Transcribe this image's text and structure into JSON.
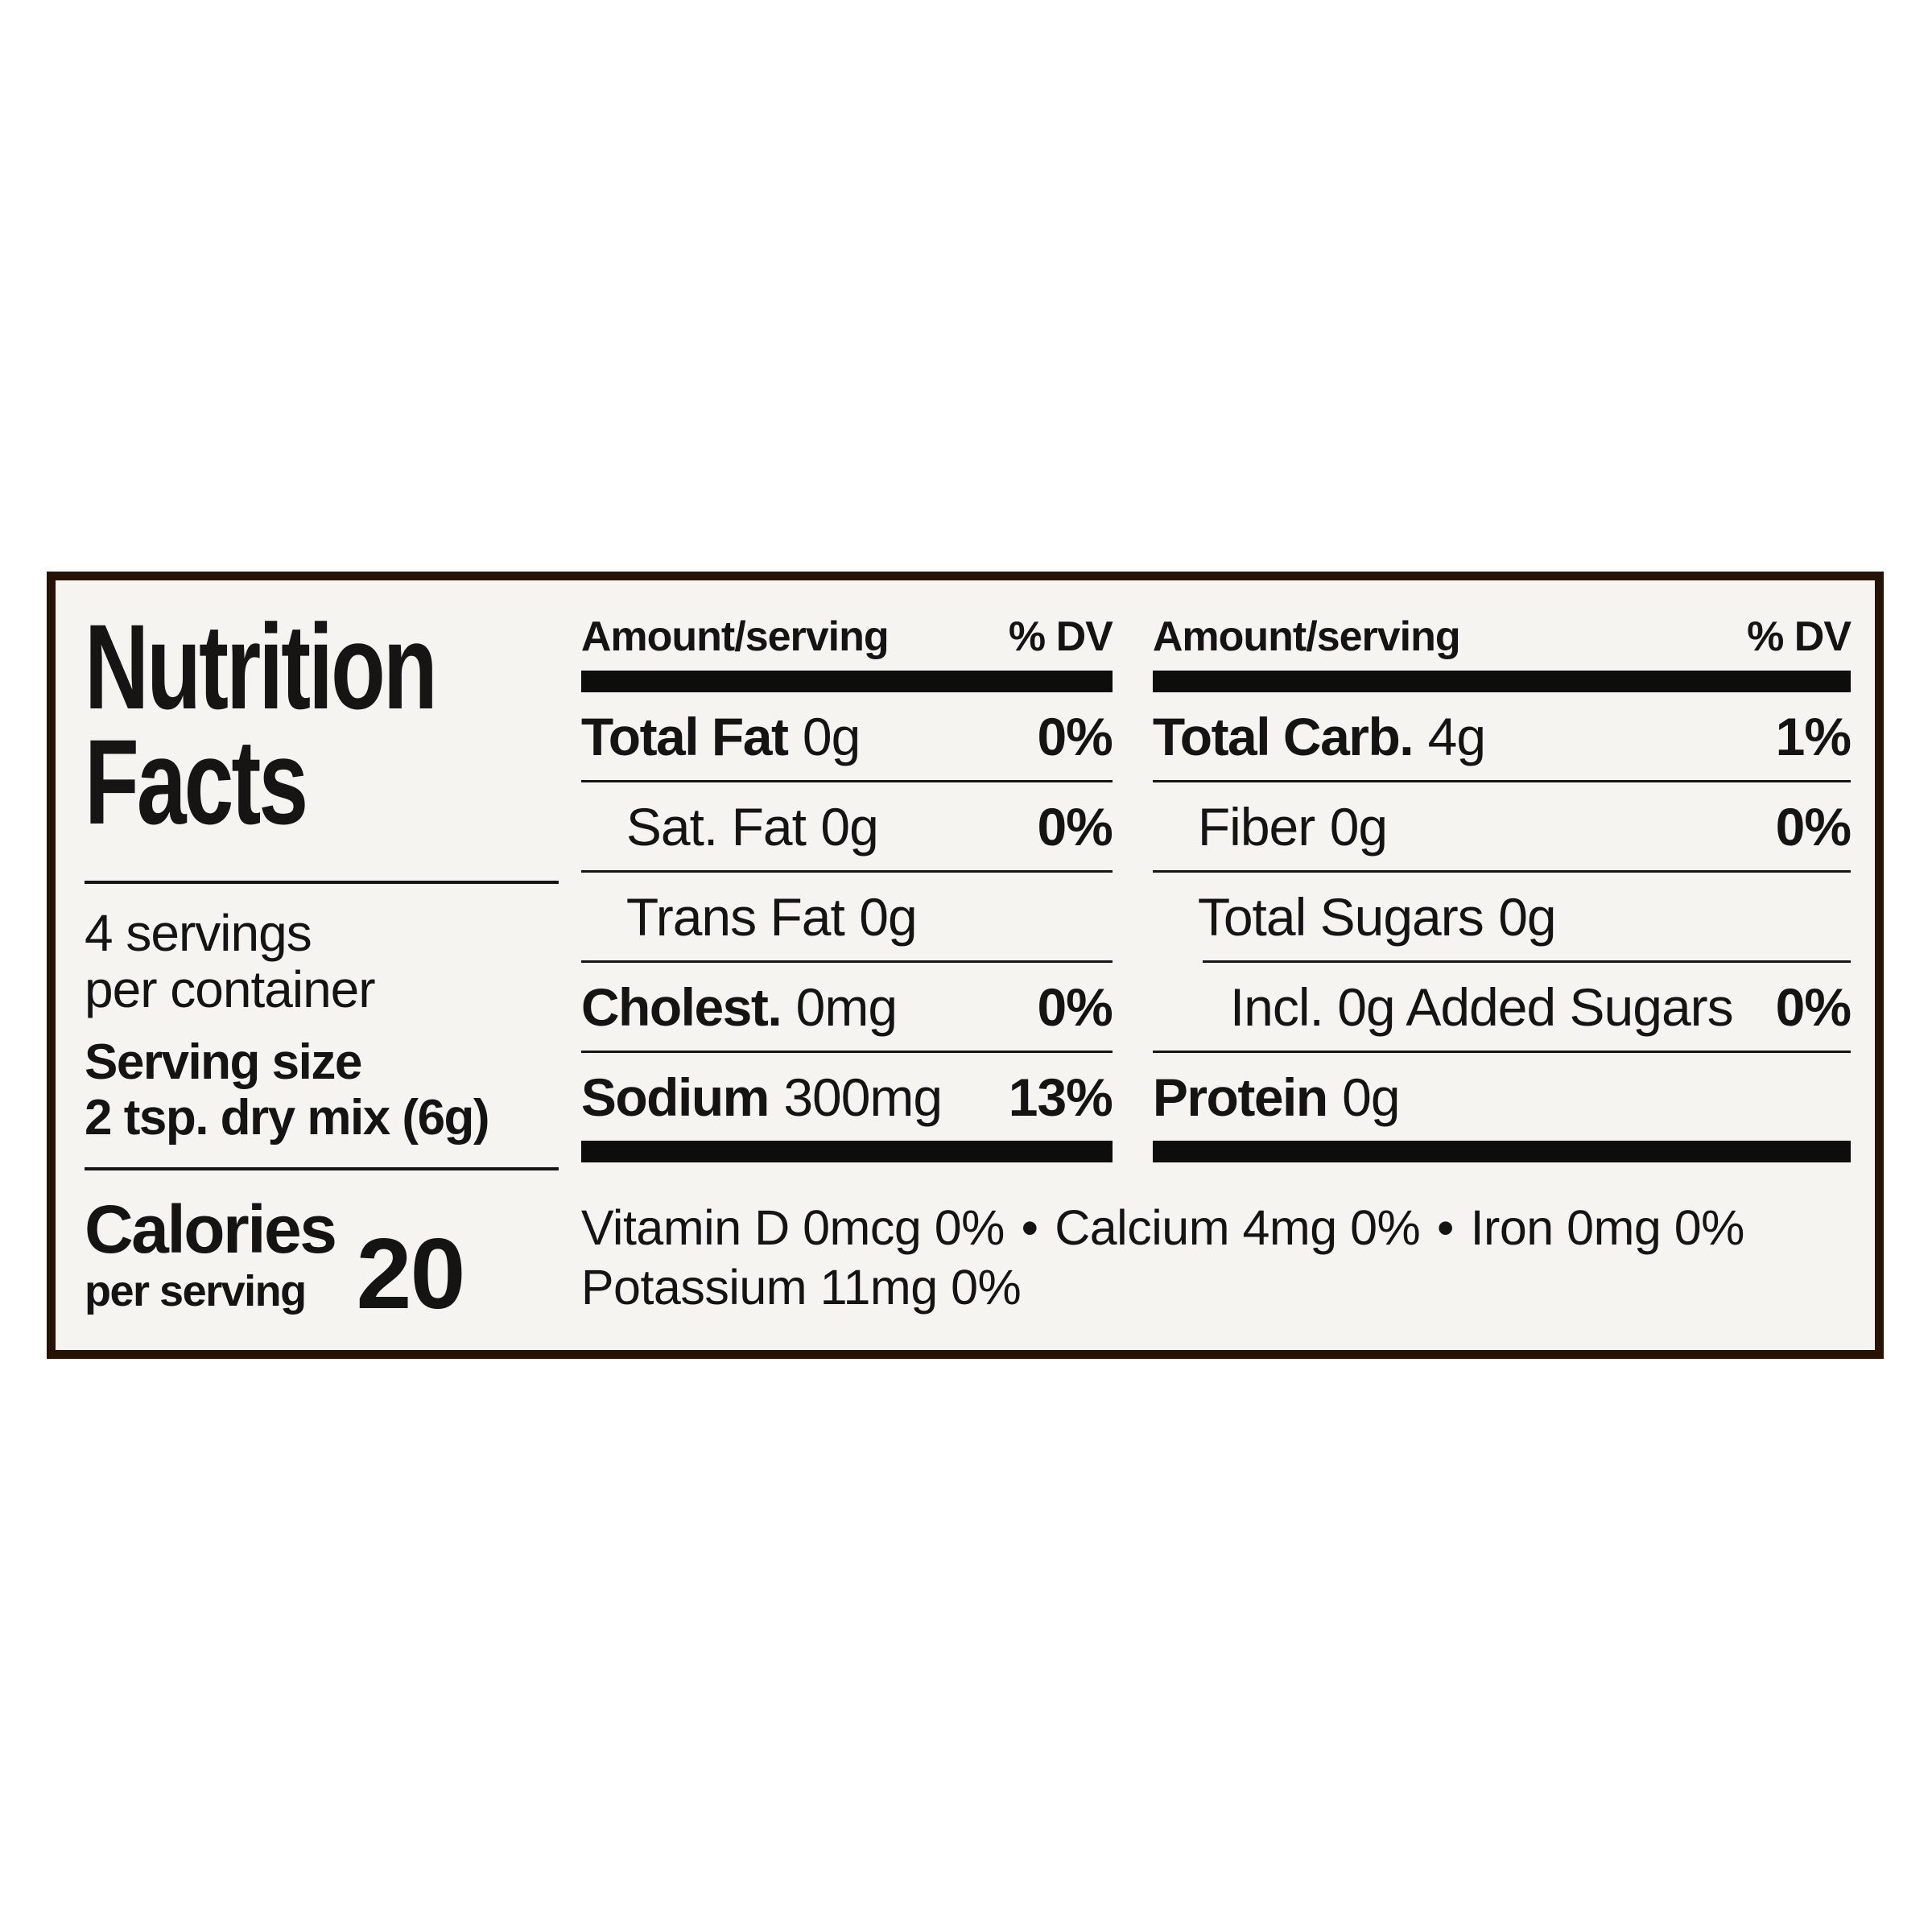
{
  "label": {
    "title_line1": "Nutrition",
    "title_line2": "Facts",
    "servings_line1": "4 servings",
    "servings_line2": "per container",
    "serving_size_label": "Serving size",
    "serving_size_value": "2 tsp. dry mix (6g)",
    "calories_label": "Calories",
    "calories_sublabel": "per serving",
    "calories_value": "20",
    "columns_header": {
      "amount": "Amount/serving",
      "dv": "% DV"
    },
    "mid_rows": [
      {
        "name": "Total Fat",
        "amount": "0g",
        "dv": "0%"
      },
      {
        "name": "Sat. Fat",
        "amount": "0g",
        "dv": "0%"
      },
      {
        "name": "Trans Fat",
        "amount": "0g",
        "dv": ""
      },
      {
        "name": "Cholest.",
        "amount": "0mg",
        "dv": "0%"
      },
      {
        "name": "Sodium",
        "amount": "300mg",
        "dv": "13%"
      }
    ],
    "right_rows": [
      {
        "name": "Total Carb.",
        "amount": "4g",
        "dv": "1%"
      },
      {
        "name": "Fiber",
        "amount": "0g",
        "dv": "0%"
      },
      {
        "name": "Total Sugars",
        "amount": "0g",
        "dv": ""
      },
      {
        "name": "Incl. 0g Added Sugars",
        "amount": "",
        "dv": "0%"
      },
      {
        "name": "Protein",
        "amount": "0g",
        "dv": ""
      }
    ],
    "footnote_bullet": "•",
    "footnote_items": [
      "Vitamin D 0mcg 0%",
      "Calcium 4mg 0%",
      "Iron 0mg 0%"
    ],
    "footnote_line2": "Potassium 11mg 0%"
  }
}
